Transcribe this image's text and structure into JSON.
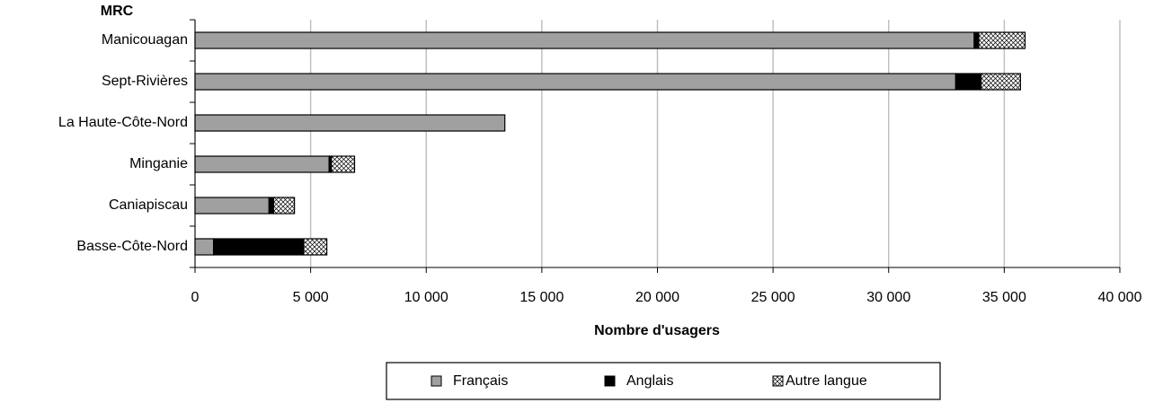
{
  "chart_data": {
    "type": "bar",
    "orientation": "horizontal",
    "stacked": true,
    "ylabel": "MRC",
    "xlabel": "Nombre d'usagers",
    "categories": [
      "Manicouagan",
      "Sept-Rivières",
      "La Haute-Côte-Nord",
      "Minganie",
      "Caniapiscau",
      "Basse-Côte-Nord"
    ],
    "series": [
      {
        "name": "Français",
        "color": "#a0a0a0",
        "values": [
          33700,
          32900,
          13400,
          5800,
          3200,
          800
        ]
      },
      {
        "name": "Anglais",
        "color": "#000000",
        "values": [
          200,
          1100,
          0,
          100,
          200,
          3900
        ]
      },
      {
        "name": "Autre langue",
        "color": "#ffffff",
        "pattern": "crosshatch",
        "values": [
          2000,
          1700,
          0,
          1000,
          900,
          1000
        ]
      }
    ],
    "xlim": [
      0,
      40000
    ],
    "xticks": [
      0,
      {
        "value": 5000,
        "label": "5 000"
      },
      {
        "value": 10000,
        "label": "10 000"
      },
      {
        "value": 15000,
        "label": "15 000"
      },
      {
        "value": 20000,
        "label": "20 000"
      },
      {
        "value": 25000,
        "label": "25 000"
      },
      {
        "value": 30000,
        "label": "30 000"
      },
      {
        "value": 35000,
        "label": "35 000"
      },
      {
        "value": 40000,
        "label": "40 000"
      }
    ],
    "grid": true,
    "legend": "bottom"
  }
}
